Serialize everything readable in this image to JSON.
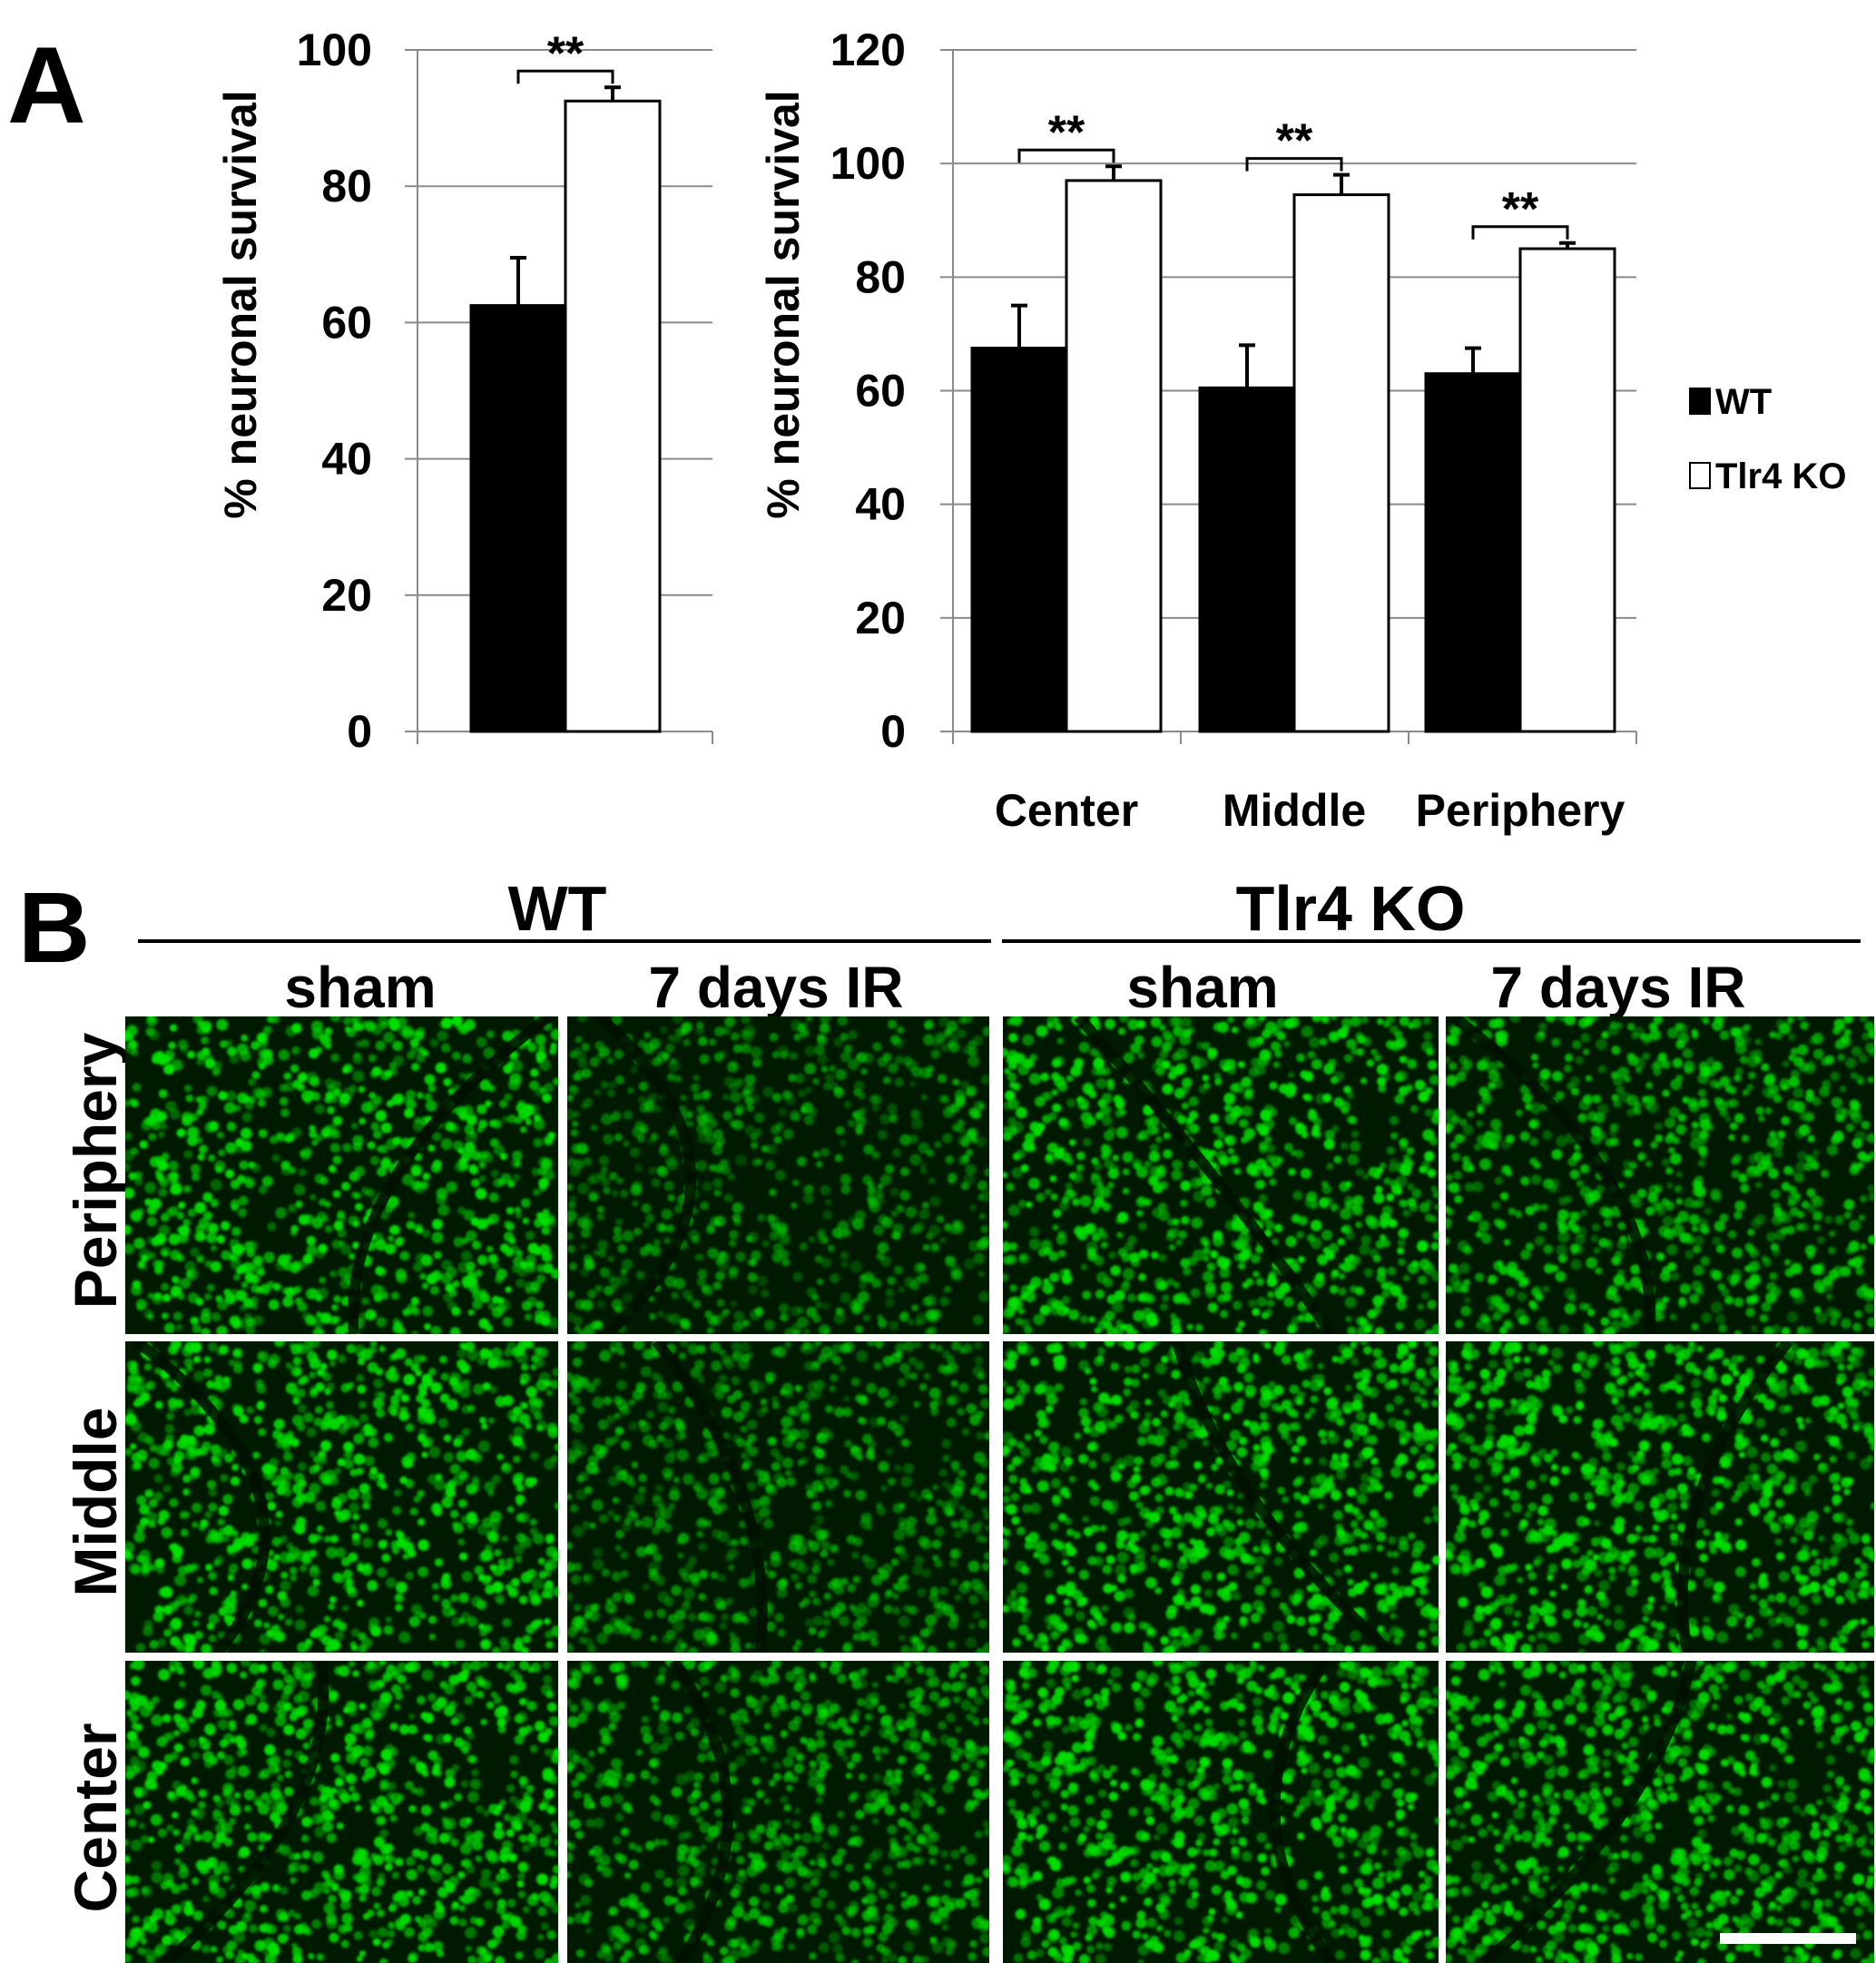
{
  "panel_a": {
    "label": "A"
  },
  "panel_b": {
    "label": "B",
    "scale_bar": true,
    "column_groups": [
      {
        "label": "WT",
        "columns": [
          "sham",
          "7 days IR"
        ]
      },
      {
        "label": "Tlr4 KO",
        "columns": [
          "sham",
          "7 days IR"
        ]
      }
    ],
    "rows": [
      "Periphery",
      "Middle",
      "Center"
    ],
    "image_color": "#00e000",
    "cell_intensity": [
      [
        1.0,
        0.6,
        1.0,
        0.85
      ],
      [
        1.0,
        0.65,
        1.0,
        1.0
      ],
      [
        1.0,
        0.75,
        1.0,
        0.95
      ]
    ]
  },
  "legend": {
    "items": [
      {
        "label": "WT",
        "fill": "#000000"
      },
      {
        "label": "Tlr4 KO",
        "fill": "#ffffff"
      }
    ]
  },
  "chart_data": [
    {
      "type": "bar",
      "title": "",
      "ylabel": "% neuronal survival",
      "xlabel": "",
      "ylim": [
        0,
        100
      ],
      "yticks": [
        0,
        20,
        40,
        60,
        80,
        100
      ],
      "grid": true,
      "categories": [
        ""
      ],
      "series": [
        {
          "name": "WT",
          "values": [
            62.5
          ],
          "errors": [
            7
          ],
          "color": "#000000"
        },
        {
          "name": "Tlr4 KO",
          "values": [
            92.5
          ],
          "errors": [
            2
          ],
          "color": "#ffffff"
        }
      ],
      "significance": [
        "**"
      ]
    },
    {
      "type": "bar",
      "title": "",
      "ylabel": "% neuronal survival",
      "xlabel": "",
      "ylim": [
        0,
        120
      ],
      "yticks": [
        0,
        20,
        40,
        60,
        80,
        100,
        120
      ],
      "grid": true,
      "categories": [
        "Center",
        "Middle",
        "Periphery"
      ],
      "series": [
        {
          "name": "WT",
          "values": [
            67.5,
            60.5,
            63
          ],
          "errors": [
            7.5,
            7.5,
            4.5
          ],
          "color": "#000000"
        },
        {
          "name": "Tlr4 KO",
          "values": [
            97,
            94.5,
            85
          ],
          "errors": [
            2.5,
            3.5,
            1
          ],
          "color": "#ffffff"
        }
      ],
      "significance": [
        "**",
        "**",
        "**"
      ]
    }
  ]
}
